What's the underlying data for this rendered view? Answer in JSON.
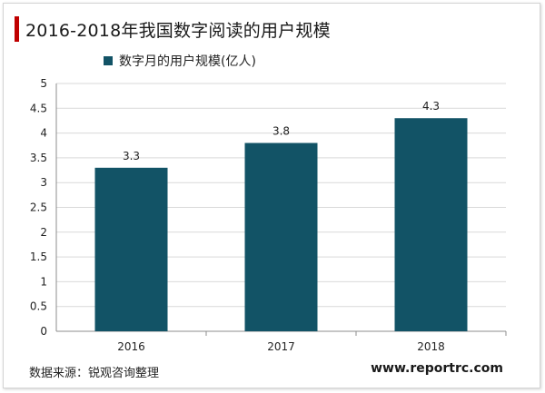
{
  "colors": {
    "accent": "#c00000",
    "bar": "#125366",
    "grid": "#d9d9d9"
  },
  "chart_data": {
    "type": "bar",
    "title": "2016-2018年我国数字阅读的用户规模",
    "categories": [
      "2016",
      "2017",
      "2018"
    ],
    "series": [
      {
        "name": "数字月的用户规模(亿人)",
        "values": [
          3.3,
          3.8,
          4.3
        ]
      }
    ],
    "data_labels": [
      "3.3",
      "3.8",
      "4.3"
    ],
    "ylim": [
      0,
      5
    ],
    "yticks": [
      "0",
      "0.5",
      "1",
      "1.5",
      "2",
      "2.5",
      "3",
      "3.5",
      "4",
      "4.5",
      "5"
    ],
    "legend": "top-left",
    "grid": true
  },
  "footer": {
    "source": "数据来源：锐观咨询整理",
    "website": "www.reportrc.com"
  }
}
